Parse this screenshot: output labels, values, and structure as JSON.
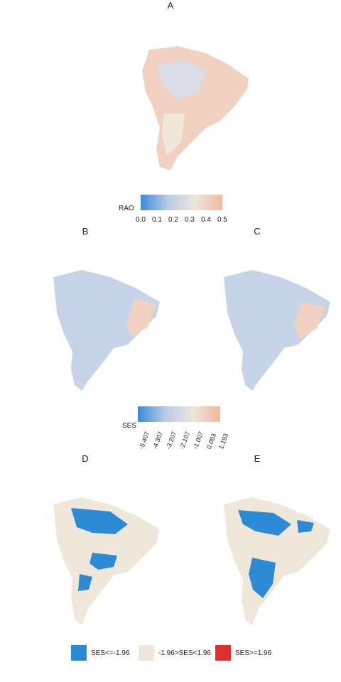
{
  "panels": {
    "a": "A",
    "b": "B",
    "c": "C",
    "d": "D",
    "e": "E"
  },
  "legend_rao": {
    "title": "RAO",
    "ticks": [
      "0.0",
      "0.1",
      "0.2",
      "0.3",
      "0.4",
      "0.5"
    ],
    "colors": [
      "#3d8ad6",
      "#b7cbe6",
      "#ece6dc",
      "#f2b79f"
    ]
  },
  "legend_ses": {
    "title": "SES",
    "ticks": [
      "-5.407",
      "-4.307",
      "-3.207",
      "-2.107",
      "-1.007",
      "0.093",
      "1.193"
    ],
    "colors": [
      "#3d8ad6",
      "#b7cbe6",
      "#ece6dc",
      "#f2b79f"
    ]
  },
  "legend_sig": {
    "items": [
      {
        "label": "SES<=-1.96",
        "color": "#2d8bd6"
      },
      {
        "label": "-1.96>SES<1.96",
        "color": "#efe8da"
      },
      {
        "label": "SES>=1.96",
        "color": "#df2f2f"
      }
    ]
  },
  "colors": {
    "land_pale": "#efe8da",
    "land_warm": "#f1d2c0",
    "land_cool": "#c7d3e8",
    "blue": "#2d8bd6"
  }
}
